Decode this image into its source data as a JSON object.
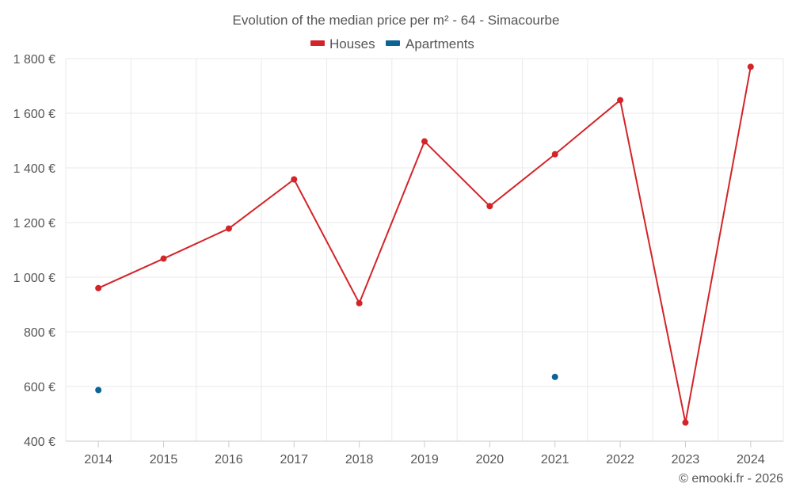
{
  "chart_data": {
    "type": "line",
    "title": "Evolution of the median price per m² - 64 - Simacourbe",
    "categories": [
      "2014",
      "2015",
      "2016",
      "2017",
      "2018",
      "2019",
      "2020",
      "2021",
      "2022",
      "2023",
      "2024"
    ],
    "series": [
      {
        "name": "Houses",
        "color": "#d32428",
        "values": [
          960,
          1068,
          1178,
          1358,
          905,
          1497,
          1260,
          1450,
          1648,
          468,
          1770
        ]
      },
      {
        "name": "Apartments",
        "color": "#0d6396",
        "values": [
          587,
          null,
          null,
          null,
          null,
          null,
          null,
          635,
          null,
          null,
          null
        ]
      }
    ],
    "ylim": [
      400,
      1800
    ],
    "yticks": [
      400,
      600,
      800,
      1000,
      1200,
      1400,
      1600,
      1800
    ],
    "ytick_labels": [
      "400 €",
      "600 €",
      "800 €",
      "1 000 €",
      "1 200 €",
      "1 400 €",
      "1 600 €",
      "1 800 €"
    ],
    "xlabel": "",
    "ylabel": "",
    "grid": true,
    "legend_position": "top-center"
  },
  "credit": "© emooki.fr - 2026"
}
